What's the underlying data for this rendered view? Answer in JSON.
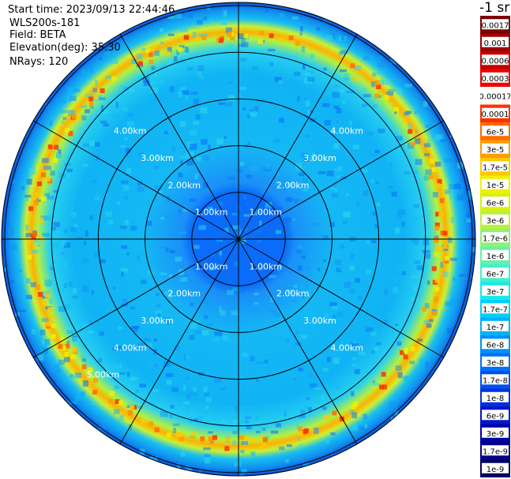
{
  "header": {
    "start_time": "Start time: 2023/09/13 22:44:46",
    "instrument": "WLS200s-181",
    "field": "Field: BETA",
    "elevation": "Elevation(deg): 35.30",
    "nrays": "NRays: 120"
  },
  "colorbar": {
    "units": "-1 sr",
    "labels": [
      "0.0017",
      "0.001",
      "0.0006",
      "0.0003",
      "0.00017",
      "0.0001",
      "6e-5",
      "3e-5",
      "1.7e-5",
      "1e-5",
      "6e-6",
      "3e-6",
      "1.7e-6",
      "1e-6",
      "6e-7",
      "3e-7",
      "1.7e-7",
      "1e-7",
      "6e-8",
      "3e-8",
      "1.7e-8",
      "1e-8",
      "6e-9",
      "3e-9",
      "1.7e-9",
      "1e-9"
    ],
    "colors": [
      "#7a0000",
      "#a00000",
      "#c80000",
      "#f00000",
      "#ffffff",
      "#ff3000",
      "#ff6a00",
      "#ff9a00",
      "#ffc800",
      "#f0f000",
      "#d8f010",
      "#b8f040",
      "#90f078",
      "#68f0a8",
      "#40f0d0",
      "#18e8ec",
      "#00d0f8",
      "#00b0f8",
      "#0090f8",
      "#0070f8",
      "#0050f0",
      "#0030e0",
      "#0018c8",
      "#0000a8",
      "#000088",
      "#000060"
    ]
  },
  "chart_data": {
    "type": "heatmap",
    "projection": "polar (PPI scan)",
    "field": "BETA",
    "units": "-1 sr",
    "elevation_deg": 35.3,
    "n_rays": 120,
    "range_rings_km": [
      1.0,
      2.0,
      3.0,
      4.0,
      5.0
    ],
    "range_ring_labels": [
      "1.00km",
      "2.00km",
      "3.00km",
      "4.00km",
      "5.00km"
    ],
    "spokes_deg": [
      0,
      30,
      60,
      90,
      120,
      150,
      180,
      210,
      240,
      270,
      300,
      330
    ],
    "color_scale": "log",
    "value_range": [
      1e-09,
      0.0017
    ],
    "features": {
      "near_field_below_1km": "1e-7",
      "mid_field_1_to_4km": "1.7e-7 to 6e-7",
      "bright_ring_near_5km": "6e-6 to 6e-5"
    }
  }
}
